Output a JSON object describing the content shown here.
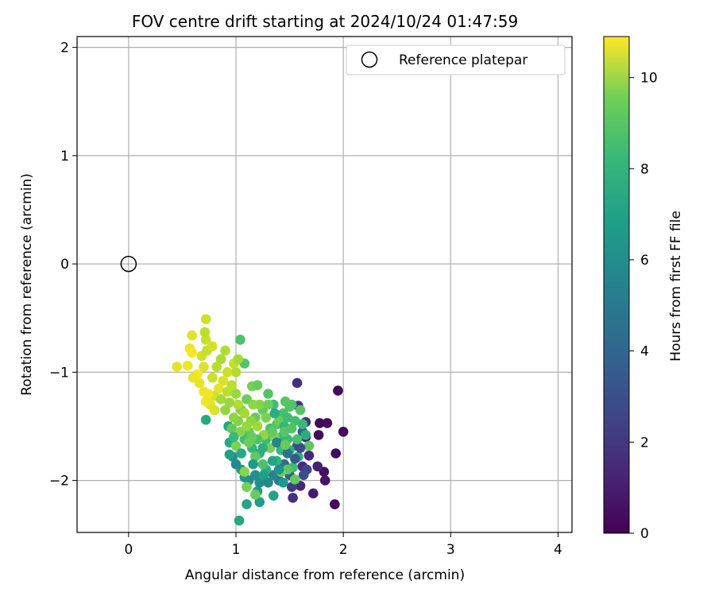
{
  "chart_data": {
    "type": "scatter",
    "title": "FOV centre drift starting at 2024/10/24 01:47:59",
    "xlabel": "Angular distance from reference (arcmin)",
    "ylabel": "Rotation from reference (arcmin)",
    "xlim": [
      -0.48,
      4.13
    ],
    "ylim": [
      -2.48,
      2.1
    ],
    "xticks": [
      0,
      1,
      2,
      3,
      4
    ],
    "xtick_labels": [
      "0",
      "1",
      "2",
      "3",
      "4"
    ],
    "yticks": [
      -2,
      -1,
      0,
      1,
      2
    ],
    "ytick_labels": [
      "−2",
      "−1",
      "0",
      "1",
      "2"
    ],
    "grid": true,
    "legend": {
      "placement": "top-right",
      "entries": [
        "Reference platepar"
      ]
    },
    "reference_point": {
      "name": "Reference platepar",
      "x": 0,
      "y": 0,
      "marker": "open-circle"
    },
    "colorbar": {
      "label": "Hours from first FF file",
      "range": [
        0,
        10.9
      ],
      "ticks": [
        0,
        2,
        4,
        6,
        8,
        10
      ],
      "tick_labels": [
        "0",
        "2",
        "4",
        "6",
        "8",
        "10"
      ],
      "colormap": "viridis"
    },
    "points": [
      {
        "x": 1.95,
        "y": -1.17,
        "h": 0.1
      },
      {
        "x": 2.0,
        "y": -1.55,
        "h": 0.2
      },
      {
        "x": 1.85,
        "y": -1.47,
        "h": 0.3
      },
      {
        "x": 1.78,
        "y": -1.47,
        "h": 0.2
      },
      {
        "x": 1.77,
        "y": -1.58,
        "h": 0.3
      },
      {
        "x": 1.93,
        "y": -1.75,
        "h": 0.2
      },
      {
        "x": 1.82,
        "y": -1.92,
        "h": 0.4
      },
      {
        "x": 1.83,
        "y": -2.0,
        "h": 0.6
      },
      {
        "x": 1.92,
        "y": -2.22,
        "h": 0.2
      },
      {
        "x": 1.72,
        "y": -2.12,
        "h": 0.8
      },
      {
        "x": 1.76,
        "y": -1.87,
        "h": 1.0
      },
      {
        "x": 1.62,
        "y": -1.87,
        "h": 1.4
      },
      {
        "x": 1.68,
        "y": -1.77,
        "h": 1.2
      },
      {
        "x": 1.65,
        "y": -1.6,
        "h": 1.0
      },
      {
        "x": 1.57,
        "y": -1.1,
        "h": 1.5
      },
      {
        "x": 1.65,
        "y": -1.46,
        "h": 1.8
      },
      {
        "x": 1.58,
        "y": -1.31,
        "h": 1.7
      },
      {
        "x": 1.6,
        "y": -2.05,
        "h": 1.2
      },
      {
        "x": 1.53,
        "y": -2.16,
        "h": 1.6
      },
      {
        "x": 1.52,
        "y": -2.06,
        "h": 1.9
      },
      {
        "x": 1.66,
        "y": -1.9,
        "h": 2.2
      },
      {
        "x": 1.62,
        "y": -1.55,
        "h": 3.5
      },
      {
        "x": 1.63,
        "y": -1.95,
        "h": 2.5
      },
      {
        "x": 1.57,
        "y": -1.68,
        "h": 2.9
      },
      {
        "x": 1.5,
        "y": -1.95,
        "h": 3.2
      },
      {
        "x": 1.45,
        "y": -1.85,
        "h": 3.8
      },
      {
        "x": 1.4,
        "y": -2.0,
        "h": 4.5
      },
      {
        "x": 1.35,
        "y": -1.95,
        "h": 4.9
      },
      {
        "x": 1.3,
        "y": -2.02,
        "h": 5.2
      },
      {
        "x": 1.22,
        "y": -2.02,
        "h": 5.3
      },
      {
        "x": 1.18,
        "y": -1.95,
        "h": 5.5
      },
      {
        "x": 1.12,
        "y": -2.0,
        "h": 5.3
      },
      {
        "x": 1.08,
        "y": -1.97,
        "h": 5.6
      },
      {
        "x": 1.05,
        "y": -1.9,
        "h": 5.9
      },
      {
        "x": 1.0,
        "y": -1.85,
        "h": 5.2
      },
      {
        "x": 0.97,
        "y": -1.78,
        "h": 5.5
      },
      {
        "x": 0.94,
        "y": -1.76,
        "h": 6.2
      },
      {
        "x": 0.94,
        "y": -1.65,
        "h": 6.5
      },
      {
        "x": 0.93,
        "y": -1.5,
        "h": 6.3
      },
      {
        "x": 0.72,
        "y": -1.44,
        "h": 6.6
      },
      {
        "x": 1.03,
        "y": -2.37,
        "h": 6.5
      },
      {
        "x": 1.1,
        "y": -2.22,
        "h": 6.4
      },
      {
        "x": 1.22,
        "y": -2.2,
        "h": 6.1
      },
      {
        "x": 1.35,
        "y": -2.14,
        "h": 6.3
      },
      {
        "x": 1.2,
        "y": -2.1,
        "h": 5.9
      },
      {
        "x": 1.28,
        "y": -1.9,
        "h": 6.8
      },
      {
        "x": 1.38,
        "y": -1.82,
        "h": 7.1
      },
      {
        "x": 1.42,
        "y": -1.72,
        "h": 7.3
      },
      {
        "x": 1.48,
        "y": -1.62,
        "h": 7.4
      },
      {
        "x": 1.55,
        "y": -1.45,
        "h": 7.6
      },
      {
        "x": 1.52,
        "y": -1.3,
        "h": 7.8
      },
      {
        "x": 1.46,
        "y": -1.27,
        "h": 8.0
      },
      {
        "x": 1.5,
        "y": -1.32,
        "h": 7.9
      },
      {
        "x": 1.44,
        "y": -1.38,
        "h": 7.7
      },
      {
        "x": 1.35,
        "y": -1.3,
        "h": 7.5
      },
      {
        "x": 1.3,
        "y": -1.2,
        "h": 7.9
      },
      {
        "x": 1.25,
        "y": -1.35,
        "h": 8.2
      },
      {
        "x": 1.18,
        "y": -1.42,
        "h": 8.3
      },
      {
        "x": 1.12,
        "y": -1.55,
        "h": 8.1
      },
      {
        "x": 1.08,
        "y": -1.62,
        "h": 7.6
      },
      {
        "x": 1.15,
        "y": -1.7,
        "h": 7.2
      },
      {
        "x": 1.22,
        "y": -1.75,
        "h": 7.0
      },
      {
        "x": 1.28,
        "y": -1.62,
        "h": 7.4
      },
      {
        "x": 1.32,
        "y": -1.52,
        "h": 7.7
      },
      {
        "x": 1.38,
        "y": -1.48,
        "h": 8.0
      },
      {
        "x": 1.42,
        "y": -1.6,
        "h": 7.2
      },
      {
        "x": 1.5,
        "y": -1.72,
        "h": 6.9
      },
      {
        "x": 1.58,
        "y": -1.78,
        "h": 6.7
      },
      {
        "x": 1.53,
        "y": -1.88,
        "h": 7.5
      },
      {
        "x": 1.48,
        "y": -1.9,
        "h": 8.1
      },
      {
        "x": 1.42,
        "y": -1.92,
        "h": 8.4
      },
      {
        "x": 1.55,
        "y": -1.99,
        "h": 8.2
      },
      {
        "x": 1.1,
        "y": -2.06,
        "h": 8.6
      },
      {
        "x": 1.18,
        "y": -2.13,
        "h": 8.3
      },
      {
        "x": 1.08,
        "y": -1.92,
        "h": 8.9
      },
      {
        "x": 1.0,
        "y": -1.68,
        "h": 8.7
      },
      {
        "x": 0.96,
        "y": -1.52,
        "h": 8.2
      },
      {
        "x": 1.02,
        "y": -1.45,
        "h": 8.8
      },
      {
        "x": 1.05,
        "y": -1.35,
        "h": 8.6
      },
      {
        "x": 1.1,
        "y": -1.25,
        "h": 8.4
      },
      {
        "x": 1.15,
        "y": -1.13,
        "h": 8.6
      },
      {
        "x": 1.2,
        "y": -1.12,
        "h": 8.3
      },
      {
        "x": 1.08,
        "y": -0.92,
        "h": 7.9
      },
      {
        "x": 1.04,
        "y": -0.7,
        "h": 7.8
      },
      {
        "x": 1.6,
        "y": -1.35,
        "h": 8.0
      },
      {
        "x": 1.62,
        "y": -1.48,
        "h": 7.3
      },
      {
        "x": 1.68,
        "y": -1.68,
        "h": 8.1
      },
      {
        "x": 1.65,
        "y": -1.58,
        "h": 6.8
      },
      {
        "x": 1.26,
        "y": -1.58,
        "h": 9.1
      },
      {
        "x": 1.2,
        "y": -1.5,
        "h": 9.3
      },
      {
        "x": 1.14,
        "y": -1.45,
        "h": 9.0
      },
      {
        "x": 1.08,
        "y": -1.38,
        "h": 9.4
      },
      {
        "x": 1.02,
        "y": -1.3,
        "h": 9.6
      },
      {
        "x": 1.0,
        "y": -1.2,
        "h": 9.2
      },
      {
        "x": 0.96,
        "y": -1.12,
        "h": 9.8
      },
      {
        "x": 1.0,
        "y": -1.0,
        "h": 9.6
      },
      {
        "x": 0.98,
        "y": -0.92,
        "h": 9.9
      },
      {
        "x": 1.02,
        "y": -0.88,
        "h": 9.4
      },
      {
        "x": 0.92,
        "y": -1.0,
        "h": 10.1
      },
      {
        "x": 0.88,
        "y": -1.08,
        "h": 10.3
      },
      {
        "x": 0.84,
        "y": -1.15,
        "h": 10.5
      },
      {
        "x": 0.8,
        "y": -1.22,
        "h": 10.2
      },
      {
        "x": 0.76,
        "y": -1.3,
        "h": 10.4
      },
      {
        "x": 0.72,
        "y": -1.27,
        "h": 10.6
      },
      {
        "x": 0.7,
        "y": -1.18,
        "h": 10.7
      },
      {
        "x": 0.66,
        "y": -1.1,
        "h": 10.5
      },
      {
        "x": 0.64,
        "y": -1.02,
        "h": 10.8
      },
      {
        "x": 0.7,
        "y": -0.95,
        "h": 10.3
      },
      {
        "x": 0.68,
        "y": -0.85,
        "h": 10.1
      },
      {
        "x": 0.73,
        "y": -0.8,
        "h": 9.9
      },
      {
        "x": 0.72,
        "y": -0.7,
        "h": 10.0
      },
      {
        "x": 0.71,
        "y": -0.63,
        "h": 9.8
      },
      {
        "x": 0.72,
        "y": -0.51,
        "h": 10.1
      },
      {
        "x": 0.59,
        "y": -0.66,
        "h": 10.4
      },
      {
        "x": 0.57,
        "y": -0.78,
        "h": 10.6
      },
      {
        "x": 0.59,
        "y": -0.82,
        "h": 10.8
      },
      {
        "x": 0.55,
        "y": -0.94,
        "h": 10.7
      },
      {
        "x": 0.45,
        "y": -0.95,
        "h": 10.5
      },
      {
        "x": 0.6,
        "y": -1.05,
        "h": 10.6
      },
      {
        "x": 0.78,
        "y": -1.05,
        "h": 10.0
      },
      {
        "x": 0.82,
        "y": -0.95,
        "h": 9.7
      },
      {
        "x": 0.86,
        "y": -0.88,
        "h": 9.5
      },
      {
        "x": 0.9,
        "y": -0.8,
        "h": 9.6
      },
      {
        "x": 0.78,
        "y": -0.76,
        "h": 10.2
      },
      {
        "x": 0.86,
        "y": -1.25,
        "h": 9.4
      },
      {
        "x": 0.9,
        "y": -1.35,
        "h": 9.1
      },
      {
        "x": 0.8,
        "y": -1.35,
        "h": 10.3
      },
      {
        "x": 0.74,
        "y": -1.2,
        "h": 10.7
      },
      {
        "x": 0.92,
        "y": -1.18,
        "h": 9.8
      },
      {
        "x": 0.94,
        "y": -1.28,
        "h": 9.2
      },
      {
        "x": 0.98,
        "y": -1.42,
        "h": 9.0
      },
      {
        "x": 1.04,
        "y": -1.55,
        "h": 8.9
      },
      {
        "x": 1.12,
        "y": -1.65,
        "h": 8.5
      },
      {
        "x": 1.18,
        "y": -1.78,
        "h": 8.2
      },
      {
        "x": 1.25,
        "y": -1.85,
        "h": 7.8
      },
      {
        "x": 1.32,
        "y": -1.7,
        "h": 8.6
      },
      {
        "x": 1.36,
        "y": -1.6,
        "h": 8.8
      },
      {
        "x": 1.4,
        "y": -1.45,
        "h": 8.4
      },
      {
        "x": 1.28,
        "y": -1.42,
        "h": 8.7
      },
      {
        "x": 1.22,
        "y": -1.3,
        "h": 8.9
      },
      {
        "x": 1.16,
        "y": -1.3,
        "h": 9.0
      },
      {
        "x": 1.3,
        "y": -1.3,
        "h": 8.5
      },
      {
        "x": 1.45,
        "y": -1.5,
        "h": 7.2
      },
      {
        "x": 1.48,
        "y": -1.42,
        "h": 7.5
      },
      {
        "x": 1.36,
        "y": -1.38,
        "h": 6.8
      },
      {
        "x": 1.34,
        "y": -1.82,
        "h": 6.4
      },
      {
        "x": 1.26,
        "y": -1.95,
        "h": 6.1
      },
      {
        "x": 1.16,
        "y": -1.85,
        "h": 6.0
      },
      {
        "x": 1.05,
        "y": -1.75,
        "h": 6.6
      },
      {
        "x": 0.98,
        "y": -1.6,
        "h": 7.3
      },
      {
        "x": 1.44,
        "y": -2.02,
        "h": 5.8
      },
      {
        "x": 1.4,
        "y": -1.9,
        "h": 5.6
      },
      {
        "x": 1.55,
        "y": -1.8,
        "h": 3.1
      },
      {
        "x": 1.48,
        "y": -1.75,
        "h": 4.2
      },
      {
        "x": 1.6,
        "y": -1.7,
        "h": 2.6
      },
      {
        "x": 1.38,
        "y": -1.65,
        "h": 5.0
      },
      {
        "x": 1.25,
        "y": -1.7,
        "h": 6.9
      },
      {
        "x": 1.2,
        "y": -1.62,
        "h": 7.8
      },
      {
        "x": 1.15,
        "y": -1.6,
        "h": 8.4
      },
      {
        "x": 1.1,
        "y": -1.5,
        "h": 9.2
      },
      {
        "x": 1.34,
        "y": -1.55,
        "h": 8.2
      },
      {
        "x": 1.45,
        "y": -1.55,
        "h": 8.0
      },
      {
        "x": 1.52,
        "y": -1.52,
        "h": 7.9
      },
      {
        "x": 1.57,
        "y": -1.62,
        "h": 7.7
      },
      {
        "x": 1.46,
        "y": -1.67,
        "h": 8.3
      }
    ]
  }
}
